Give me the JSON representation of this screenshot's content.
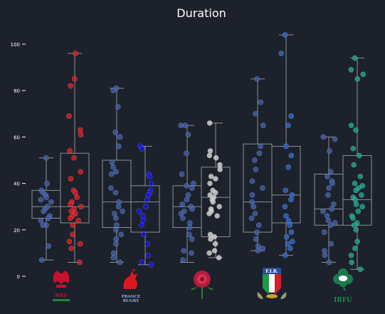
{
  "chart_data": {
    "type": "box",
    "title": "Duration",
    "ylim": [
      0,
      105
    ],
    "yticks": [
      0,
      20,
      40,
      60,
      80,
      100
    ],
    "groups": [
      {
        "team": "Wales",
        "logo_text": "WRU",
        "boxes": [
          {
            "name": "left",
            "color": "#3d5ba8",
            "min": 7,
            "q1": 25,
            "median": 30,
            "q3": 37,
            "max": 51,
            "points": [
              51,
              40,
              37,
              36,
              35,
              34,
              33,
              32,
              30,
              29,
              28,
              26,
              25,
              24,
              22,
              22,
              13,
              7
            ]
          },
          {
            "name": "right",
            "color": "#e0191e",
            "min": 6,
            "q1": 23,
            "median": 30,
            "q3": 53,
            "max": 96,
            "points": [
              96,
              85,
              82,
              69,
              63,
              61,
              54,
              51,
              45,
              42,
              37,
              36,
              34,
              32,
              31,
              30,
              29,
              28,
              27,
              26,
              25,
              24,
              22,
              18,
              15,
              14,
              12,
              6
            ]
          }
        ]
      },
      {
        "team": "France",
        "logo_text": "FRANCE RUGBY",
        "boxes": [
          {
            "name": "left",
            "color": "#3d5ba8",
            "min": 6,
            "q1": 21,
            "median": 32,
            "q3": 50,
            "max": 81,
            "points": [
              81,
              80,
              73,
              62,
              60,
              56,
              49,
              47,
              45,
              44,
              38,
              36,
              32,
              30,
              28,
              27,
              25,
              22,
              20,
              18,
              16,
              14,
              10,
              8,
              6
            ]
          },
          {
            "name": "right",
            "color": "#1515e0",
            "min": 5,
            "q1": 19,
            "median": 32,
            "q3": 39,
            "max": 56,
            "points": [
              56,
              55,
              44,
              43,
              40,
              37,
              36,
              35,
              33,
              30,
              28,
              26,
              24,
              22,
              18,
              14,
              9,
              6,
              5
            ]
          }
        ]
      },
      {
        "team": "England",
        "logo_text": "",
        "boxes": [
          {
            "name": "left",
            "color": "#3d5ba8",
            "min": 6,
            "q1": 21,
            "median": 30,
            "q3": 39,
            "max": 65,
            "points": [
              65,
              65,
              61,
              53,
              44,
              40,
              39,
              38,
              35,
              33,
              31,
              30,
              29,
              28,
              27,
              25,
              23,
              21,
              18,
              16,
              11,
              10,
              7
            ]
          },
          {
            "name": "right",
            "color": "#cfcfcf",
            "min": 8,
            "q1": 17,
            "median": 34,
            "q3": 47,
            "max": 66,
            "points": [
              66,
              54,
              52,
              51,
              48,
              46,
              43,
              42,
              40,
              37,
              36,
              35,
              34,
              33,
              32,
              30,
              29,
              28,
              27,
              26,
              18,
              17,
              16,
              14,
              11,
              10,
              8
            ]
          }
        ]
      },
      {
        "team": "Italy",
        "logo_text": "F.I.R.",
        "boxes": [
          {
            "name": "left",
            "color": "#3d5ba8",
            "min": 11,
            "q1": 19,
            "median": 32,
            "q3": 57,
            "max": 85,
            "points": [
              85,
              75,
              70,
              65,
              56,
              53,
              50,
              46,
              41,
              38,
              35,
              32,
              30,
              27,
              25,
              22,
              19,
              16,
              13,
              12,
              11
            ]
          },
          {
            "name": "right",
            "color": "#2c64c8",
            "min": 9,
            "q1": 23,
            "median": 35,
            "q3": 56,
            "max": 104,
            "points": [
              104,
              96,
              69,
              65,
              56,
              52,
              47,
              37,
              35,
              33,
              30,
              26,
              24,
              22,
              19,
              17,
              15,
              14,
              12,
              9
            ]
          }
        ]
      },
      {
        "team": "Ireland",
        "logo_text": "IRFU",
        "boxes": [
          {
            "name": "left",
            "color": "#3d5ba8",
            "min": 6,
            "q1": 22,
            "median": 29,
            "q3": 44,
            "max": 60,
            "points": [
              60,
              59,
              54,
              45,
              43,
              41,
              40,
              38,
              35,
              31,
              29,
              28,
              26,
              24,
              23,
              22,
              19,
              14,
              11,
              9,
              6
            ]
          },
          {
            "name": "right",
            "color": "#19a38a",
            "min": 3,
            "q1": 22,
            "median": 33,
            "q3": 52,
            "max": 94,
            "points": [
              94,
              89,
              87,
              85,
              65,
              63,
              55,
              52,
              48,
              43,
              40,
              39,
              38,
              37,
              35,
              34,
              33,
              31,
              30,
              28,
              26,
              25,
              23,
              22,
              20,
              15,
              12,
              9,
              6,
              3
            ]
          }
        ]
      }
    ]
  }
}
